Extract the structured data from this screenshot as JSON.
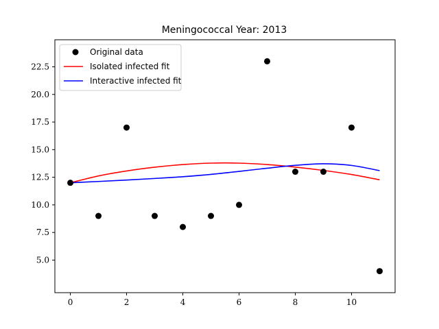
{
  "chart_data": {
    "type": "scatter",
    "title": "Meningococcal Year: 2013",
    "xlabel": "",
    "ylabel": "",
    "xlim": [
      -0.55,
      11.55
    ],
    "ylim": [
      2.05,
      24.95
    ],
    "xticks": [
      0,
      2,
      4,
      6,
      8,
      10
    ],
    "yticks": [
      5.0,
      7.5,
      10.0,
      12.5,
      15.0,
      17.5,
      20.0,
      22.5
    ],
    "xtick_labels": [
      "0",
      "2",
      "4",
      "6",
      "8",
      "10"
    ],
    "ytick_labels": [
      "5.0",
      "7.5",
      "10.0",
      "12.5",
      "15.0",
      "17.5",
      "20.0",
      "22.5"
    ],
    "grid": false,
    "legend_position": "top-left",
    "points": {
      "name": "Original data",
      "color": "#000000",
      "x": [
        0,
        1,
        2,
        3,
        4,
        5,
        6,
        7,
        8,
        9,
        10,
        11
      ],
      "y": [
        12,
        9,
        17,
        9,
        8,
        9,
        10,
        23,
        13,
        13,
        17,
        4
      ]
    },
    "series": [
      {
        "name": "Isolated infected fit",
        "color": "#ff0000",
        "x": [
          0,
          1,
          2,
          3,
          4,
          5,
          6,
          7,
          8,
          9,
          10,
          11
        ],
        "y": [
          12.0,
          12.62,
          13.07,
          13.41,
          13.65,
          13.78,
          13.78,
          13.65,
          13.42,
          13.12,
          12.75,
          12.27
        ]
      },
      {
        "name": "Interactive infected fit",
        "color": "#0000ff",
        "x": [
          0,
          1,
          2,
          3,
          4,
          5,
          6,
          7,
          8,
          9,
          10,
          11
        ],
        "y": [
          12.0,
          12.12,
          12.25,
          12.39,
          12.55,
          12.76,
          13.03,
          13.32,
          13.58,
          13.72,
          13.57,
          13.1
        ]
      }
    ]
  }
}
